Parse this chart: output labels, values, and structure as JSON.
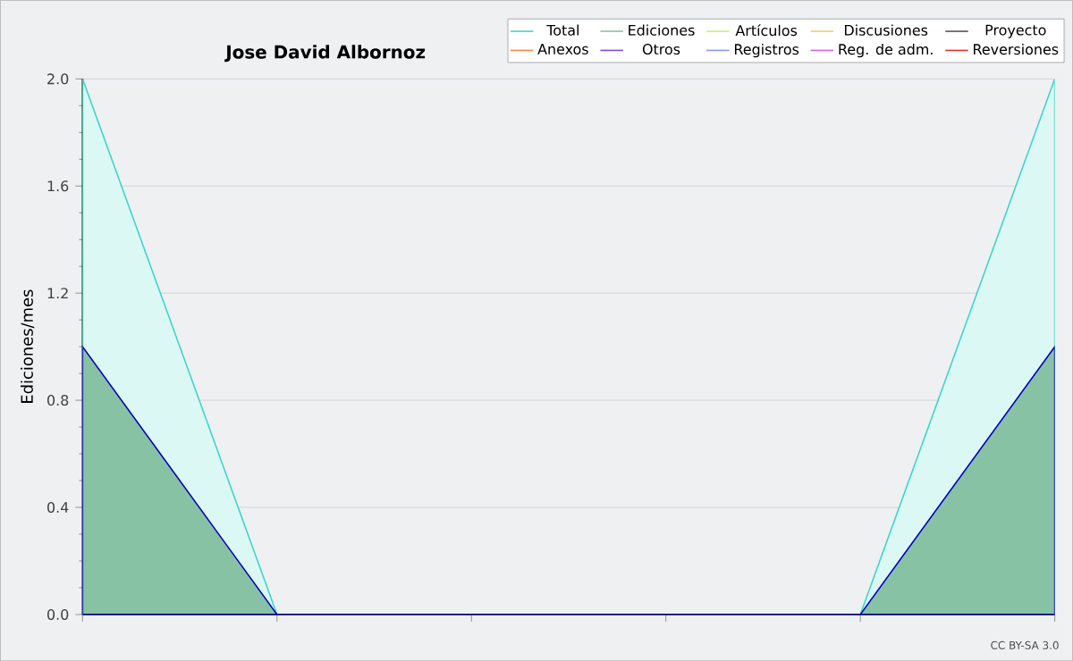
{
  "chart_data": {
    "type": "area",
    "title": "**Jose David Albornoz**",
    "ylabel": "Ediciones/mes",
    "categories": [
      null,
      null,
      null,
      null,
      null,
      null
    ],
    "series": [
      {
        "name": "Total",
        "color": "#3dd6c8",
        "values": [
          2,
          0,
          0,
          0,
          0,
          2
        ]
      },
      {
        "name": "Ediciones",
        "color": "#88c2a4",
        "values": [
          1,
          0,
          0,
          0,
          0,
          1
        ]
      },
      {
        "name": "Artículos",
        "color": "#c8f070",
        "values": [
          null,
          null,
          null,
          null,
          null,
          null
        ]
      },
      {
        "name": "Discusiones",
        "color": "#f5d060",
        "values": [
          null,
          null,
          null,
          null,
          null,
          null
        ]
      },
      {
        "name": "Proyecto",
        "color": "#555555",
        "values": [
          null,
          null,
          null,
          null,
          null,
          null
        ]
      },
      {
        "name": "Anexos",
        "color": "#f08848",
        "values": [
          null,
          null,
          null,
          null,
          null,
          null
        ]
      },
      {
        "name": "Otros",
        "color": "#8844dd",
        "values": [
          null,
          null,
          null,
          null,
          null,
          null
        ]
      },
      {
        "name": "Registros",
        "color": "#8899ee",
        "values": [
          null,
          null,
          null,
          null,
          null,
          null
        ]
      },
      {
        "name": "Reg. de adm.",
        "color": "#cc66dd",
        "values": [
          null,
          null,
          null,
          null,
          null,
          null
        ]
      },
      {
        "name": "Reversiones",
        "color": "#e03030",
        "values": [
          null,
          null,
          null,
          null,
          null,
          null
        ]
      }
    ],
    "ylim": [
      0,
      2
    ],
    "yticks": [
      {
        "value": 0,
        "label": "0.0"
      },
      {
        "value": 0.4,
        "label": "0.4"
      },
      {
        "value": 0.8,
        "label": "0.8"
      },
      {
        "value": 1.2,
        "label": "1.2"
      },
      {
        "value": 1.6,
        "label": "1.6"
      },
      {
        "value": 2,
        "label": "2.0"
      }
    ],
    "grid": "y",
    "legend": "top right",
    "annotations": [
      "CC BY-SA 3.0"
    ]
  }
}
